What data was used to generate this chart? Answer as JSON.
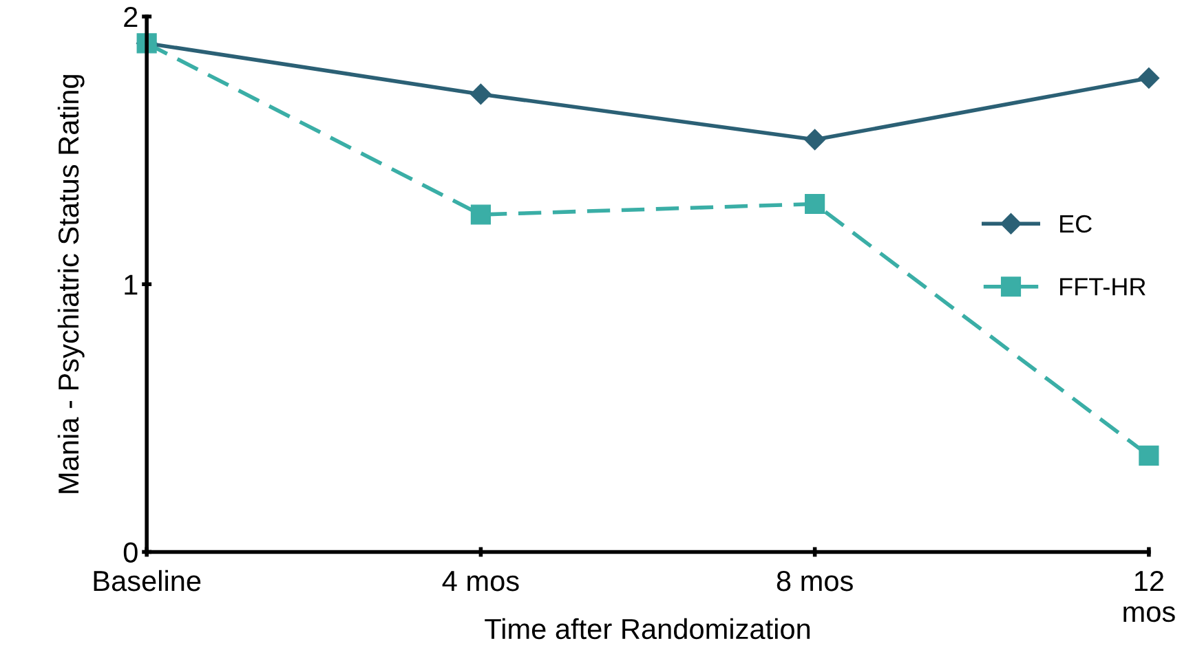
{
  "chart_data": {
    "type": "line",
    "xlabel": "Time after Randomization",
    "ylabel": "Mania - Psychiatric Status Rating",
    "categories": [
      "Baseline",
      "4 mos",
      "8 mos",
      "12\nmos"
    ],
    "series": [
      {
        "name": "EC",
        "color": "#2b6075",
        "values": [
          1.9,
          1.71,
          1.54,
          1.77
        ],
        "marker": "diamond",
        "line_style": "solid"
      },
      {
        "name": "FFT-HR",
        "color": "#3aaea6",
        "values": [
          1.9,
          1.26,
          1.3,
          0.36
        ],
        "marker": "square",
        "line_style": "dashed"
      }
    ],
    "ylim": [
      0,
      2
    ],
    "yticks": [
      0,
      1,
      2
    ],
    "grid": false,
    "legend": "right"
  }
}
